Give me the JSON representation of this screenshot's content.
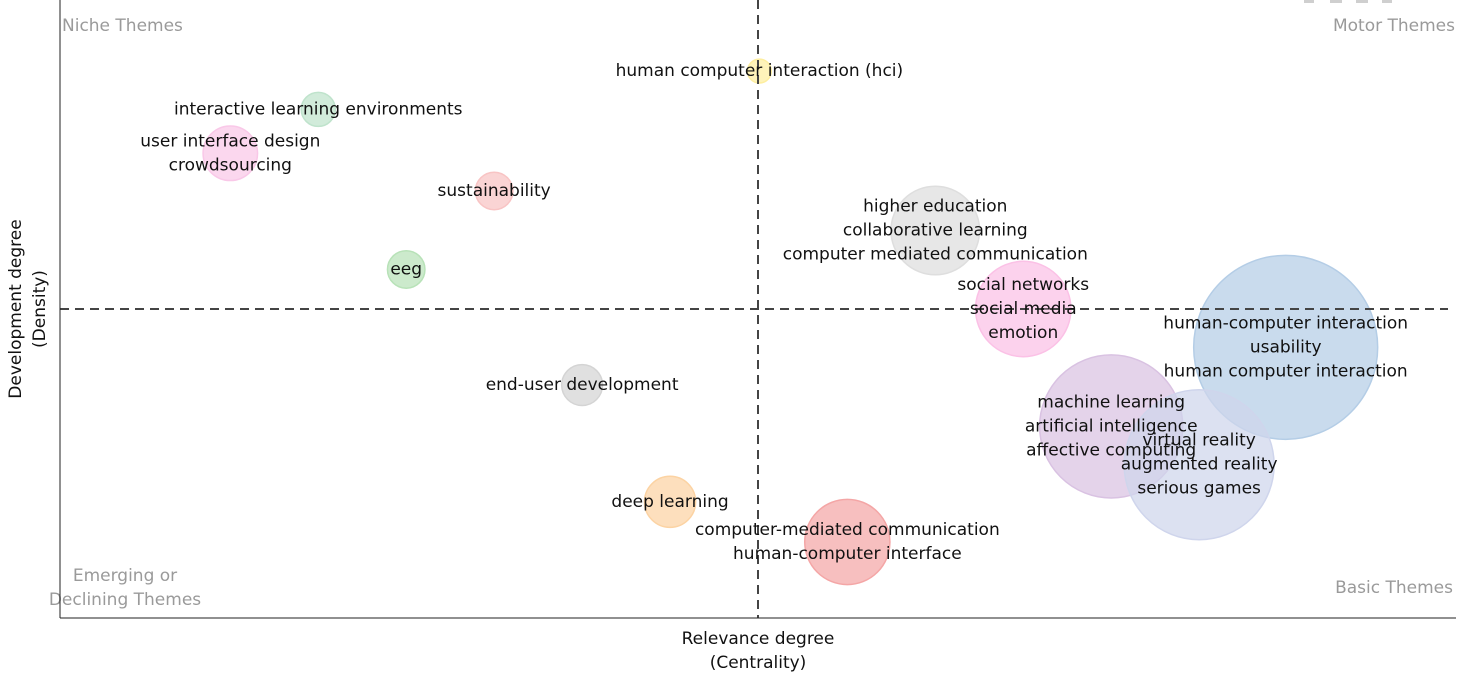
{
  "chart_data": {
    "type": "scatter",
    "subtype": "bubble",
    "xlabel": [
      "Relevance degree",
      "(Centrality)"
    ],
    "ylabel": [
      "Development degree",
      "(Density)"
    ],
    "xlim": [
      0,
      1
    ],
    "ylim": [
      0,
      1
    ],
    "reference_lines": {
      "x": 0.5,
      "y": 0.5,
      "style": "dashed"
    },
    "grid": false,
    "quadrants": {
      "top_left": [
        "Niche Themes"
      ],
      "top_right": [
        "Motor Themes"
      ],
      "bottom_left": [
        "Emerging or",
        "Declining Themes"
      ],
      "bottom_right": [
        "Basic Themes"
      ]
    },
    "points": [
      {
        "labels": [
          "human computer interaction (hci)"
        ],
        "x": 0.501,
        "y": 0.885,
        "size": 0.035,
        "color": "#fdeea0"
      },
      {
        "labels": [
          "interactive learning environments"
        ],
        "x": 0.185,
        "y": 0.823,
        "size": 0.05,
        "color": "#bfe3cc"
      },
      {
        "labels": [
          "user interface design",
          "crowdsourcing"
        ],
        "x": 0.122,
        "y": 0.752,
        "size": 0.08,
        "color": "#f9c8e8"
      },
      {
        "labels": [
          "sustainability"
        ],
        "x": 0.311,
        "y": 0.691,
        "size": 0.055,
        "color": "#f8c4c4"
      },
      {
        "labels": [
          "eeg"
        ],
        "x": 0.248,
        "y": 0.564,
        "size": 0.055,
        "color": "#b8e2b8"
      },
      {
        "labels": [
          "higher education",
          "collaborative learning",
          "computer mediated communication"
        ],
        "x": 0.627,
        "y": 0.627,
        "size": 0.13,
        "color": "#dedede"
      },
      {
        "labels": [
          "social networks",
          "social media",
          "emotion"
        ],
        "x": 0.69,
        "y": 0.5,
        "size": 0.14,
        "color": "#fbc1e6"
      },
      {
        "labels": [
          "human-computer interaction",
          "usability",
          "human computer interaction"
        ],
        "x": 0.878,
        "y": 0.438,
        "size": 0.27,
        "color": "#b4cde6"
      },
      {
        "labels": [
          "end-user development"
        ],
        "x": 0.374,
        "y": 0.377,
        "size": 0.06,
        "color": "#d4d4d4"
      },
      {
        "labels": [
          "machine learning",
          "artificial intelligence",
          "affective computing"
        ],
        "x": 0.753,
        "y": 0.31,
        "size": 0.21,
        "color": "#d9c2e2"
      },
      {
        "labels": [
          "virtual reality",
          "augmented reality",
          "serious games"
        ],
        "x": 0.816,
        "y": 0.248,
        "size": 0.22,
        "color": "#cfd5ec"
      },
      {
        "labels": [
          "deep learning"
        ],
        "x": 0.437,
        "y": 0.188,
        "size": 0.075,
        "color": "#fcd3a3"
      },
      {
        "labels": [
          "computer-mediated communication",
          "human-computer interface"
        ],
        "x": 0.564,
        "y": 0.123,
        "size": 0.125,
        "color": "#f4a6a6"
      }
    ]
  }
}
